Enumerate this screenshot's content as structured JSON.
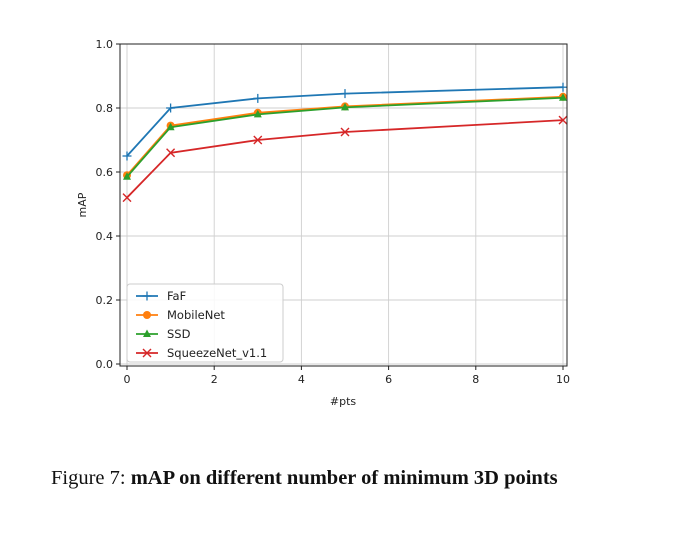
{
  "caption": {
    "prefix": "Figure 7:",
    "text": "mAP on different number of minimum 3D points"
  },
  "chart_data": {
    "type": "line",
    "xlabel": "#pts",
    "ylabel": "mAP",
    "xlim": [
      0,
      10
    ],
    "ylim": [
      0,
      1.0
    ],
    "xticks": [
      0,
      2,
      4,
      6,
      8,
      10
    ],
    "yticks": [
      0.0,
      0.2,
      0.4,
      0.6,
      0.8,
      1.0
    ],
    "ytick_labels": [
      "0.0",
      "0.2",
      "0.4",
      "0.6",
      "0.8",
      "1.0"
    ],
    "grid": true,
    "legend_position": "lower-left",
    "x": [
      0,
      1,
      3,
      5,
      10
    ],
    "series": [
      {
        "name": "FaF",
        "values": [
          0.65,
          0.8,
          0.83,
          0.845,
          0.865
        ],
        "color": "#1f77b4",
        "marker": "plus"
      },
      {
        "name": "MobileNet",
        "values": [
          0.59,
          0.745,
          0.785,
          0.805,
          0.835
        ],
        "color": "#ff7f0e",
        "marker": "circle"
      },
      {
        "name": "SSD",
        "values": [
          0.585,
          0.74,
          0.78,
          0.802,
          0.832
        ],
        "color": "#2ca02c",
        "marker": "triangle"
      },
      {
        "name": "SqueezeNet_v1.1",
        "values": [
          0.52,
          0.66,
          0.7,
          0.725,
          0.762
        ],
        "color": "#d62728",
        "marker": "x"
      }
    ]
  }
}
